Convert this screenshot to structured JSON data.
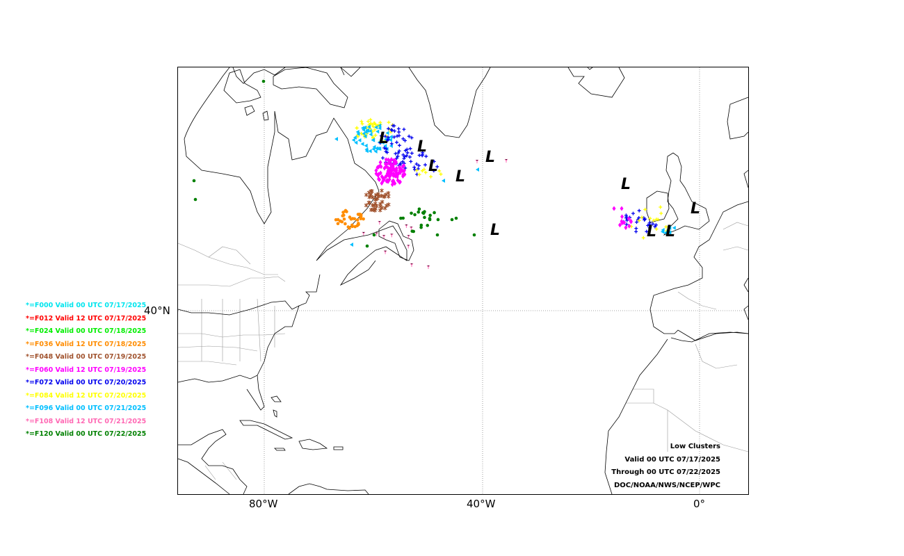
{
  "map": {
    "lat_label": "40°N",
    "lon_labels": [
      "80°W",
      "40°W",
      "0°"
    ],
    "low_symbol": "L",
    "colors": {
      "land": "#000000",
      "border": "#999999",
      "grid": "#888888",
      "frame": "#000000"
    }
  },
  "legend": [
    {
      "label": "*=F000 Valid 00 UTC 07/17/2025",
      "color": "#00e5ee"
    },
    {
      "label": "*=F012 Valid 12 UTC 07/17/2025",
      "color": "#ff0000"
    },
    {
      "label": "*=F024 Valid 00 UTC 07/18/2025",
      "color": "#00ee00"
    },
    {
      "label": "*=F036 Valid 12 UTC 07/18/2025",
      "color": "#ff8c00"
    },
    {
      "label": "*=F048 Valid 00 UTC 07/19/2025",
      "color": "#a0522d"
    },
    {
      "label": "*=F060 Valid 12 UTC 07/19/2025",
      "color": "#ff00ff"
    },
    {
      "label": "*=F072 Valid 00 UTC 07/20/2025",
      "color": "#0000ee"
    },
    {
      "label": "*=F084 Valid 12 UTC 07/20/2025",
      "color": "#ffff00"
    },
    {
      "label": "*=F096 Valid 00 UTC 07/21/2025",
      "color": "#00bfff"
    },
    {
      "label": "*=F108 Valid 12 UTC 07/21/2025",
      "color": "#ff69b4"
    },
    {
      "label": "*=F120 Valid 00 UTC 07/22/2025",
      "color": "#008000"
    }
  ],
  "info": {
    "title": "Low Clusters",
    "valid": "Valid 00 UTC 07/17/2025",
    "through": "Through 00 UTC 07/22/2025",
    "source": "DOC/NOAA/NWS/NCEP/WPC"
  }
}
